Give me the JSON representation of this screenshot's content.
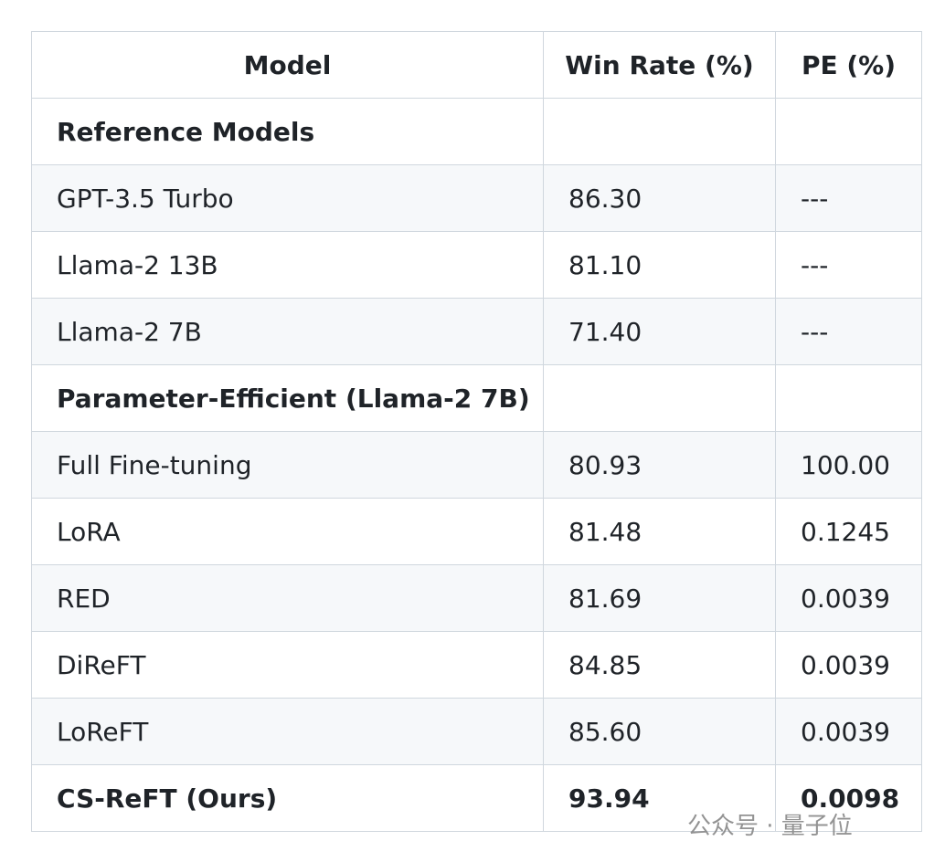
{
  "table": {
    "header": [
      "Model",
      "Win Rate (%)",
      "PE (%)"
    ],
    "rows": [
      {
        "cells": [
          "Reference Models"
        ],
        "bold": true
      },
      {
        "cells": [
          "GPT-3.5 Turbo",
          "86.30",
          "---"
        ]
      },
      {
        "cells": [
          "Llama-2 13B",
          "81.10",
          "---"
        ]
      },
      {
        "cells": [
          "Llama-2 7B",
          "71.40",
          "---"
        ]
      },
      {
        "cells": [
          "Parameter-Efficient (Llama-2 7B)"
        ],
        "bold": true
      },
      {
        "cells": [
          "Full Fine-tuning",
          "80.93",
          "100.00"
        ]
      },
      {
        "cells": [
          "LoRA",
          "81.48",
          "0.1245"
        ]
      },
      {
        "cells": [
          "RED",
          "81.69",
          "0.0039"
        ]
      },
      {
        "cells": [
          "DiReFT",
          "84.85",
          "0.0039"
        ]
      },
      {
        "cells": [
          "LoReFT",
          "85.60",
          "0.0039"
        ]
      },
      {
        "cells": [
          "CS-ReFT (Ours)",
          "93.94",
          "0.0098"
        ],
        "bold": true
      }
    ]
  },
  "watermark": "公众号 · 量子位"
}
